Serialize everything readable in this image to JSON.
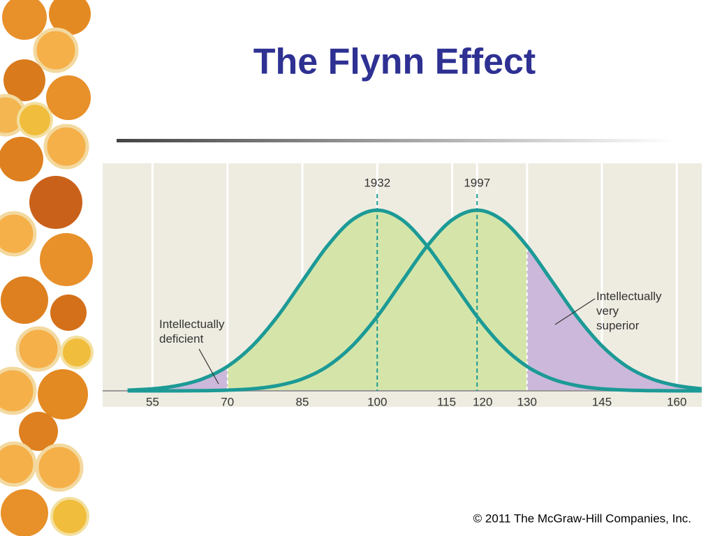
{
  "title": "The Flynn Effect",
  "footer": "© 2011 The McGraw-Hill Companies, Inc.",
  "chart_data": {
    "type": "line",
    "x": [
      50,
      55,
      60,
      65,
      70,
      75,
      80,
      85,
      90,
      95,
      100,
      105,
      110,
      115,
      120,
      125,
      130,
      135,
      140,
      145,
      150,
      155,
      160,
      165
    ],
    "series": [
      {
        "name": "1932",
        "color": "#1c9a96",
        "mean": 100,
        "values": [
          0.004,
          0.011,
          0.029,
          0.066,
          0.135,
          0.249,
          0.411,
          0.607,
          0.801,
          0.946,
          1,
          0.946,
          0.801,
          0.607,
          0.411,
          0.249,
          0.135,
          0.066,
          0.029,
          0.011,
          0.004,
          0.001,
          0,
          0
        ]
      },
      {
        "name": "1997",
        "color": "#1c9a96",
        "mean": 120,
        "values": [
          0,
          0,
          0,
          0.001,
          0.004,
          0.011,
          0.029,
          0.066,
          0.135,
          0.249,
          0.411,
          0.607,
          0.801,
          0.946,
          1,
          0.946,
          0.801,
          0.607,
          0.411,
          0.249,
          0.135,
          0.066,
          0.029,
          0.011
        ]
      }
    ],
    "xlim": [
      45,
      165
    ],
    "ylim": [
      0,
      1.12
    ],
    "xticks": [
      55,
      70,
      85,
      100,
      115,
      120,
      130,
      145,
      160
    ],
    "grid": true,
    "shade_low": 70,
    "shade_high": 130,
    "fill_color": "#d5e5aa",
    "tail_color": "#cbb8da",
    "annotations": [
      "Intellectually deficient",
      "Intellectually very superior"
    ]
  }
}
